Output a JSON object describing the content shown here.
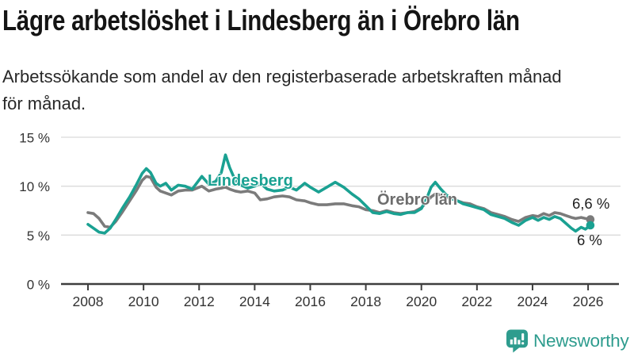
{
  "header": {
    "title": "Lägre arbetslöshet i Lindesberg än i Örebro län",
    "subtitle_line1": "Arbetssökande som andel av den registerbaserade arbetskraften månad",
    "subtitle_line2": "för månad."
  },
  "chart_data": {
    "type": "line",
    "title": "Lägre arbetslöshet i Lindesberg än i Örebro län",
    "subtitle": "Arbetssökande som andel av den registerbaserade arbetskraften månad för månad.",
    "unit": "%",
    "grid": "horizontal",
    "legend_position": "inline-labels-on-lines",
    "ylim": [
      0,
      15.5
    ],
    "y_ticks": [
      {
        "label": "15 %",
        "value": 15
      },
      {
        "label": "10 %",
        "value": 10
      },
      {
        "label": "5 %",
        "value": 5
      },
      {
        "label": "0 %",
        "value": 0
      }
    ],
    "x_ticks": [
      2008,
      2010,
      2012,
      2014,
      2016,
      2018,
      2020,
      2022,
      2024,
      2026
    ],
    "series": [
      {
        "name": "Lindesberg",
        "color": "#1aa192",
        "end_label": "6 %",
        "end_value": 6.0,
        "points": [
          [
            2008.0,
            6.1
          ],
          [
            2008.2,
            5.7
          ],
          [
            2008.4,
            5.3
          ],
          [
            2008.6,
            5.2
          ],
          [
            2008.8,
            5.7
          ],
          [
            2009.0,
            6.6
          ],
          [
            2009.25,
            7.8
          ],
          [
            2009.5,
            8.9
          ],
          [
            2009.75,
            10.2
          ],
          [
            2009.95,
            11.3
          ],
          [
            2010.1,
            11.8
          ],
          [
            2010.25,
            11.4
          ],
          [
            2010.45,
            10.3
          ],
          [
            2010.6,
            10.0
          ],
          [
            2010.8,
            10.3
          ],
          [
            2011.0,
            9.6
          ],
          [
            2011.25,
            10.1
          ],
          [
            2011.5,
            10.0
          ],
          [
            2011.75,
            9.7
          ],
          [
            2012.1,
            11.0
          ],
          [
            2012.35,
            10.2
          ],
          [
            2012.6,
            10.5
          ],
          [
            2012.8,
            11.4
          ],
          [
            2012.95,
            13.2
          ],
          [
            2013.1,
            11.9
          ],
          [
            2013.3,
            10.6
          ],
          [
            2013.5,
            10.1
          ],
          [
            2013.75,
            9.8
          ],
          [
            2014.0,
            10.0
          ],
          [
            2014.2,
            10.3
          ],
          [
            2014.45,
            9.7
          ],
          [
            2014.7,
            9.5
          ],
          [
            2015.0,
            9.6
          ],
          [
            2015.25,
            9.9
          ],
          [
            2015.5,
            9.6
          ],
          [
            2015.8,
            10.3
          ],
          [
            2016.0,
            9.9
          ],
          [
            2016.3,
            9.4
          ],
          [
            2016.6,
            9.9
          ],
          [
            2016.9,
            10.4
          ],
          [
            2017.2,
            9.9
          ],
          [
            2017.5,
            9.2
          ],
          [
            2017.75,
            8.7
          ],
          [
            2018.0,
            8.0
          ],
          [
            2018.25,
            7.3
          ],
          [
            2018.5,
            7.2
          ],
          [
            2018.75,
            7.4
          ],
          [
            2019.0,
            7.2
          ],
          [
            2019.25,
            7.1
          ],
          [
            2019.5,
            7.3
          ],
          [
            2019.75,
            7.3
          ],
          [
            2020.0,
            7.7
          ],
          [
            2020.2,
            8.8
          ],
          [
            2020.35,
            9.9
          ],
          [
            2020.5,
            10.4
          ],
          [
            2020.7,
            9.7
          ],
          [
            2020.9,
            9.1
          ],
          [
            2021.1,
            8.7
          ],
          [
            2021.3,
            8.5
          ],
          [
            2021.5,
            8.2
          ],
          [
            2021.75,
            8.0
          ],
          [
            2022.0,
            7.8
          ],
          [
            2022.25,
            7.6
          ],
          [
            2022.5,
            7.1
          ],
          [
            2022.75,
            6.9
          ],
          [
            2023.0,
            6.7
          ],
          [
            2023.25,
            6.3
          ],
          [
            2023.5,
            6.0
          ],
          [
            2023.75,
            6.5
          ],
          [
            2024.0,
            6.8
          ],
          [
            2024.2,
            6.5
          ],
          [
            2024.4,
            6.8
          ],
          [
            2024.6,
            6.6
          ],
          [
            2024.8,
            6.9
          ],
          [
            2025.0,
            6.7
          ],
          [
            2025.2,
            6.2
          ],
          [
            2025.4,
            5.7
          ],
          [
            2025.55,
            5.4
          ],
          [
            2025.75,
            5.8
          ],
          [
            2025.9,
            5.6
          ],
          [
            2026.08,
            6.0
          ]
        ]
      },
      {
        "name": "Örebro län",
        "color": "#7b7b7b",
        "end_label": "6,6 %",
        "end_value": 6.6,
        "points": [
          [
            2008.0,
            7.3
          ],
          [
            2008.2,
            7.2
          ],
          [
            2008.4,
            6.7
          ],
          [
            2008.6,
            5.9
          ],
          [
            2008.8,
            5.8
          ],
          [
            2009.0,
            6.4
          ],
          [
            2009.25,
            7.4
          ],
          [
            2009.5,
            8.5
          ],
          [
            2009.75,
            9.6
          ],
          [
            2009.95,
            10.6
          ],
          [
            2010.1,
            11.0
          ],
          [
            2010.25,
            10.9
          ],
          [
            2010.45,
            9.9
          ],
          [
            2010.6,
            9.5
          ],
          [
            2010.8,
            9.3
          ],
          [
            2011.0,
            9.1
          ],
          [
            2011.25,
            9.5
          ],
          [
            2011.5,
            9.6
          ],
          [
            2011.75,
            9.6
          ],
          [
            2012.1,
            10.0
          ],
          [
            2012.35,
            9.5
          ],
          [
            2012.6,
            9.7
          ],
          [
            2012.8,
            9.8
          ],
          [
            2012.95,
            9.9
          ],
          [
            2013.1,
            9.7
          ],
          [
            2013.3,
            9.5
          ],
          [
            2013.5,
            9.4
          ],
          [
            2013.75,
            9.5
          ],
          [
            2014.0,
            9.3
          ],
          [
            2014.2,
            8.6
          ],
          [
            2014.45,
            8.7
          ],
          [
            2014.7,
            8.9
          ],
          [
            2015.0,
            9.0
          ],
          [
            2015.25,
            8.9
          ],
          [
            2015.5,
            8.6
          ],
          [
            2015.8,
            8.5
          ],
          [
            2016.0,
            8.3
          ],
          [
            2016.3,
            8.1
          ],
          [
            2016.6,
            8.1
          ],
          [
            2016.9,
            8.2
          ],
          [
            2017.2,
            8.2
          ],
          [
            2017.5,
            8.0
          ],
          [
            2017.75,
            7.9
          ],
          [
            2018.0,
            7.6
          ],
          [
            2018.25,
            7.5
          ],
          [
            2018.5,
            7.3
          ],
          [
            2018.75,
            7.5
          ],
          [
            2019.0,
            7.3
          ],
          [
            2019.25,
            7.2
          ],
          [
            2019.5,
            7.3
          ],
          [
            2019.75,
            7.4
          ],
          [
            2020.0,
            7.8
          ],
          [
            2020.2,
            8.4
          ],
          [
            2020.35,
            8.9
          ],
          [
            2020.5,
            9.2
          ],
          [
            2020.7,
            9.1
          ],
          [
            2020.9,
            8.9
          ],
          [
            2021.1,
            8.7
          ],
          [
            2021.3,
            8.5
          ],
          [
            2021.5,
            8.3
          ],
          [
            2021.75,
            8.2
          ],
          [
            2022.0,
            7.9
          ],
          [
            2022.25,
            7.7
          ],
          [
            2022.5,
            7.3
          ],
          [
            2022.75,
            7.1
          ],
          [
            2023.0,
            6.9
          ],
          [
            2023.25,
            6.6
          ],
          [
            2023.5,
            6.4
          ],
          [
            2023.75,
            6.8
          ],
          [
            2024.0,
            7.0
          ],
          [
            2024.2,
            6.9
          ],
          [
            2024.4,
            7.2
          ],
          [
            2024.6,
            7.0
          ],
          [
            2024.8,
            7.3
          ],
          [
            2025.0,
            7.2
          ],
          [
            2025.2,
            7.0
          ],
          [
            2025.4,
            6.8
          ],
          [
            2025.55,
            6.7
          ],
          [
            2025.75,
            6.8
          ],
          [
            2025.9,
            6.7
          ],
          [
            2026.08,
            6.6
          ]
        ]
      }
    ],
    "colors": {
      "grid": "#dadada",
      "axis": "#3e3e3e",
      "tick_text": "#333333",
      "orebro_label": "#6d6d6d"
    }
  },
  "footer": {
    "brand": "Newsworthy",
    "brand_color": "#2e9c8e",
    "logo_icon": "speech-bubble-bar-chart-exclamation"
  }
}
